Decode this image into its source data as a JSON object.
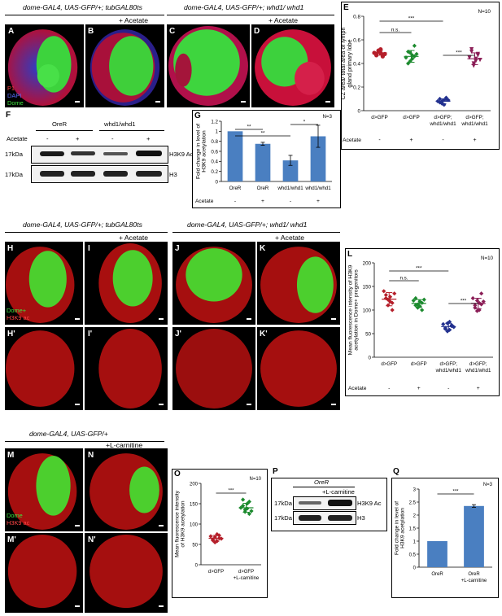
{
  "headers": {
    "top_left": "dome-GAL4, UAS-GFP/+; tubGAL80ts",
    "top_right": "dome-GAL4, UAS-GFP/+; whd1/ whd1",
    "mid_left": "dome-GAL4, UAS-GFP/+; tubGAL80ts",
    "mid_right": "dome-GAL4, UAS-GFP/+; whd1/ whd1",
    "bottom": "dome-GAL4, UAS-GFP/+",
    "acetate": "+ Acetate",
    "lcarnitine": "+L-carnitine"
  },
  "panel_letters": {
    "A": "A",
    "B": "B",
    "C": "C",
    "D": "D",
    "E": "E",
    "F": "F",
    "G": "G",
    "H": "H",
    "I": "I",
    "J": "J",
    "K": "K",
    "L": "L",
    "H2": "H'",
    "I2": "I'",
    "J2": "J'",
    "K2": "K'",
    "M": "M",
    "N": "N",
    "O": "O",
    "P": "P",
    "Q": "Q",
    "M2": "M'",
    "N2": "N'"
  },
  "channel_labels": {
    "p1": "P1",
    "dapi": "DAPI",
    "dome": "Dome",
    "dome_plus": "Dome+",
    "h3k9ac": "H3K9 ac"
  },
  "panel_F": {
    "groups": [
      "OreR",
      "whd1/whd1"
    ],
    "acetate_label": "Acetate",
    "acetate_signs": [
      "-",
      "+",
      "-",
      "+"
    ],
    "rows": [
      {
        "kda": "17kDa",
        "protein": "H3K9 Ac"
      },
      {
        "kda": "17kDa",
        "protein": "H3"
      }
    ]
  },
  "panel_P": {
    "header": "OreR",
    "treatment": "+L-carnitine",
    "rows": [
      {
        "kda": "17kDa",
        "protein": "H3K9 Ac"
      },
      {
        "kda": "17kDa",
        "protein": "H3"
      }
    ]
  },
  "chart_data": [
    {
      "id": "E",
      "type": "scatter",
      "ylabel": "CZ area/ total area of lymph gland primary lobe",
      "ylim": [
        0,
        0.8
      ],
      "yticks": [
        0,
        0.2,
        0.4,
        0.6,
        0.8
      ],
      "n_label": "N=10",
      "row_label": "Acetate",
      "categories": [
        "d>GFP",
        "d>GFP",
        "d>GFP; whd1/whd1",
        "d>GFP; whd1/whd1"
      ],
      "treatment_signs": [
        "-",
        "+",
        "-",
        "+"
      ],
      "colors": [
        "#b51f2a",
        "#1c8a2e",
        "#22318f",
        "#8b1e57"
      ],
      "markers": [
        "circle",
        "diamond",
        "diamond",
        "triangle-down"
      ],
      "series": [
        {
          "values": [
            0.49,
            0.47,
            0.51,
            0.52,
            0.46,
            0.48,
            0.5,
            0.49,
            0.47,
            0.48
          ],
          "mean": 0.49,
          "sd": 0.02
        },
        {
          "values": [
            0.45,
            0.5,
            0.42,
            0.47,
            0.55,
            0.4,
            0.49,
            0.44,
            0.46,
            0.48
          ],
          "mean": 0.46,
          "sd": 0.05
        },
        {
          "values": [
            0.08,
            0.1,
            0.06,
            0.09,
            0.11,
            0.07,
            0.08,
            0.05,
            0.1,
            0.09
          ],
          "mean": 0.08,
          "sd": 0.02
        },
        {
          "values": [
            0.45,
            0.5,
            0.38,
            0.42,
            0.47,
            0.52,
            0.4,
            0.44,
            0.48,
            0.43
          ],
          "mean": 0.44,
          "sd": 0.05
        }
      ],
      "significance": [
        {
          "from": 0,
          "to": 2,
          "label": "***"
        },
        {
          "from": 0,
          "to": 1,
          "label": "n.s."
        },
        {
          "from": 2,
          "to": 3,
          "label": "***"
        }
      ]
    },
    {
      "id": "G",
      "type": "bar",
      "ylabel": "Fold change in level of H3K9 acetylation",
      "ylim": [
        0,
        1.2
      ],
      "yticks": [
        0,
        0.2,
        0.4,
        0.6,
        0.8,
        1,
        1.2
      ],
      "n_label": "N=3",
      "row_label": "Acetate",
      "categories": [
        "OreR",
        "OreR",
        "whd1/whd1",
        "whd1/whd1"
      ],
      "treatment_signs": [
        "-",
        "+",
        "-",
        "+"
      ],
      "values": [
        1.0,
        0.75,
        0.42,
        0.9
      ],
      "errors": [
        0,
        0.03,
        0.1,
        0.22
      ],
      "color": "#4a7fc1",
      "significance": [
        {
          "from": 0,
          "to": 1,
          "label": "**"
        },
        {
          "from": 0,
          "to": 2,
          "label": "**"
        },
        {
          "from": 2,
          "to": 3,
          "label": "*"
        }
      ]
    },
    {
      "id": "L",
      "type": "scatter",
      "ylabel": "Mean fluorescence intensity of H3K9 acetylation in Dome+ progenitors",
      "ylim": [
        0,
        200
      ],
      "yticks": [
        0,
        50,
        100,
        150,
        200
      ],
      "n_label": "N=10",
      "row_label": "Acetate",
      "categories": [
        "d>GFP",
        "d>GFP",
        "d>GFP; whd1/whd1",
        "d>GFP; whd1/whd1"
      ],
      "treatment_signs": [
        "-",
        "+",
        "-",
        "+"
      ],
      "colors": [
        "#b51f2a",
        "#1c8a2e",
        "#22318f",
        "#8b1e57"
      ],
      "markers": [
        "diamond",
        "diamond",
        "diamond",
        "diamond"
      ],
      "series": [
        {
          "values": [
            140,
            125,
            110,
            118,
            100,
            132,
            122,
            128,
            115,
            135
          ],
          "mean": 123,
          "sd": 14
        },
        {
          "values": [
            120,
            110,
            105,
            118,
            100,
            125,
            112,
            108,
            115,
            122
          ],
          "mean": 114,
          "sd": 8
        },
        {
          "values": [
            70,
            62,
            55,
            75,
            68,
            60,
            72,
            58,
            66,
            64
          ],
          "mean": 65,
          "sd": 7
        },
        {
          "values": [
            125,
            110,
            98,
            115,
            135,
            105,
            120,
            100,
            112,
            118
          ],
          "mean": 114,
          "sd": 11
        }
      ],
      "significance": [
        {
          "from": 0,
          "to": 2,
          "label": "***"
        },
        {
          "from": 0,
          "to": 1,
          "label": "n.s."
        },
        {
          "from": 2,
          "to": 3,
          "label": "***"
        }
      ]
    },
    {
      "id": "O",
      "type": "scatter",
      "ylabel": "Mean fluorescence intensity of H3K9 acetylation",
      "ylim": [
        0,
        200
      ],
      "yticks": [
        0,
        50,
        100,
        150,
        200
      ],
      "n_label": "N=10",
      "categories": [
        "d>GFP",
        "d>GFP +L-carnitine"
      ],
      "colors": [
        "#b51f2a",
        "#1c8a2e"
      ],
      "markers": [
        "diamond",
        "diamond"
      ],
      "series": [
        {
          "values": [
            70,
            60,
            55,
            75,
            65,
            62,
            68,
            58,
            72,
            64
          ],
          "mean": 65,
          "sd": 7
        },
        {
          "values": [
            140,
            160,
            130,
            150,
            125,
            145,
            135,
            138,
            155,
            132
          ],
          "mean": 140,
          "sd": 11
        }
      ],
      "significance": [
        {
          "from": 0,
          "to": 1,
          "label": "***"
        }
      ]
    },
    {
      "id": "Q",
      "type": "bar",
      "ylabel": "Fold change in level of H3K9 acetylation",
      "ylim": [
        0,
        3
      ],
      "yticks": [
        0,
        0.5,
        1,
        1.5,
        2,
        2.5,
        3
      ],
      "n_label": "N=3",
      "categories": [
        "OreR",
        "OreR +L-carnitine"
      ],
      "values": [
        1.0,
        2.35
      ],
      "errors": [
        0,
        0.05
      ],
      "color": "#4a7fc1",
      "significance": [
        {
          "from": 0,
          "to": 1,
          "label": "***"
        }
      ]
    }
  ]
}
